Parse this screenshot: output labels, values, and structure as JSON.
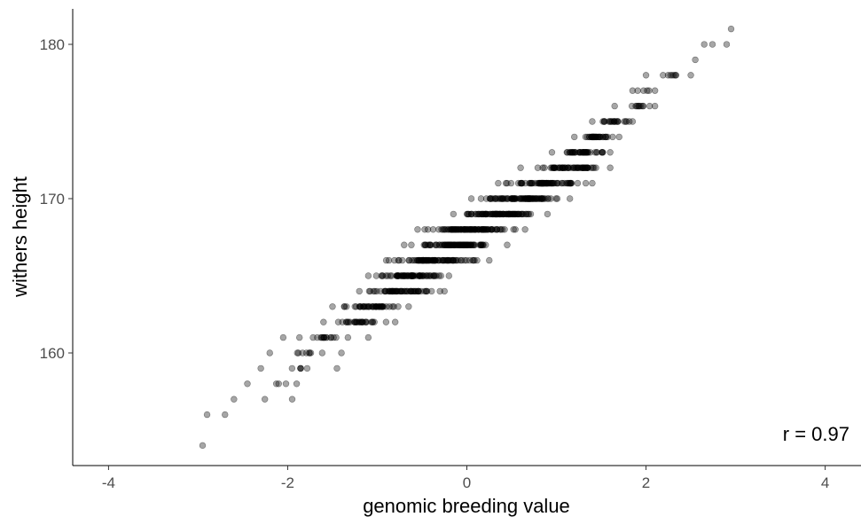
{
  "chart_data": {
    "type": "scatter",
    "title": "",
    "xlabel": "genomic breeding value",
    "ylabel": "withers height",
    "xlim": [
      -4.4,
      4.4
    ],
    "ylim": [
      152.7,
      182.3
    ],
    "xticks": [
      -4,
      -2,
      0,
      2,
      4
    ],
    "yticks": [
      160,
      170,
      180
    ],
    "grid": false,
    "legend": "none",
    "annotation": "r = 0.97",
    "point_color": "#000000",
    "point_alpha": 0.35,
    "rows": [
      {
        "y": 154,
        "x_min": -2.95,
        "x_max": -2.95,
        "n": 1
      },
      {
        "y": 156,
        "x_min": -2.9,
        "x_max": -2.7,
        "n": 2
      },
      {
        "y": 157,
        "x_min": -2.6,
        "x_max": -1.95,
        "n": 3
      },
      {
        "y": 158,
        "x_min": -2.45,
        "x_max": -1.9,
        "n": 5
      },
      {
        "y": 159,
        "x_min": -2.3,
        "x_max": -1.45,
        "n": 7
      },
      {
        "y": 160,
        "x_min": -2.2,
        "x_max": -1.4,
        "n": 10
      },
      {
        "y": 161,
        "x_min": -2.05,
        "x_max": -1.1,
        "n": 18
      },
      {
        "y": 162,
        "x_min": -1.6,
        "x_max": -0.8,
        "n": 30
      },
      {
        "y": 163,
        "x_min": -1.5,
        "x_max": -0.65,
        "n": 45
      },
      {
        "y": 164,
        "x_min": -1.2,
        "x_max": -0.25,
        "n": 60
      },
      {
        "y": 165,
        "x_min": -1.1,
        "x_max": -0.2,
        "n": 75
      },
      {
        "y": 166,
        "x_min": -0.9,
        "x_max": 0.25,
        "n": 85
      },
      {
        "y": 167,
        "x_min": -0.7,
        "x_max": 0.45,
        "n": 95
      },
      {
        "y": 168,
        "x_min": -0.55,
        "x_max": 0.65,
        "n": 100
      },
      {
        "y": 169,
        "x_min": -0.15,
        "x_max": 0.9,
        "n": 95
      },
      {
        "y": 170,
        "x_min": 0.05,
        "x_max": 1.15,
        "n": 90
      },
      {
        "y": 171,
        "x_min": 0.35,
        "x_max": 1.4,
        "n": 75
      },
      {
        "y": 172,
        "x_min": 0.6,
        "x_max": 1.6,
        "n": 60
      },
      {
        "y": 173,
        "x_min": 0.95,
        "x_max": 1.6,
        "n": 45
      },
      {
        "y": 174,
        "x_min": 1.2,
        "x_max": 1.7,
        "n": 35
      },
      {
        "y": 175,
        "x_min": 1.4,
        "x_max": 1.85,
        "n": 22
      },
      {
        "y": 176,
        "x_min": 1.65,
        "x_max": 2.1,
        "n": 12
      },
      {
        "y": 177,
        "x_min": 1.85,
        "x_max": 2.1,
        "n": 6
      },
      {
        "y": 178,
        "x_min": 2.0,
        "x_max": 2.5,
        "n": 9
      },
      {
        "y": 179,
        "x_min": 2.55,
        "x_max": 2.55,
        "n": 1
      },
      {
        "y": 180,
        "x_min": 2.65,
        "x_max": 2.9,
        "n": 3
      },
      {
        "y": 181,
        "x_min": 2.95,
        "x_max": 2.95,
        "n": 1
      }
    ]
  }
}
